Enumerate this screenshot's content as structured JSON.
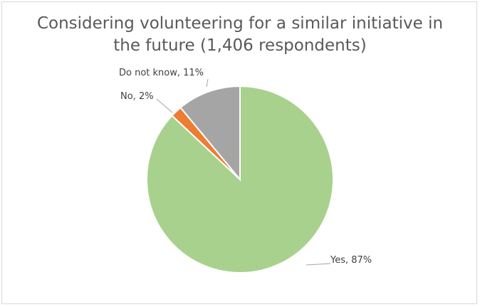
{
  "chart_data": {
    "type": "pie",
    "title": "Considering volunteering for a similar initiative in the future (1,406 respondents)",
    "categories": [
      "Yes",
      "No",
      "Do not know"
    ],
    "values": [
      87,
      2,
      11
    ],
    "unit": "%",
    "data_labels": [
      "Yes, 87%",
      "No, 2%",
      "Do not know, 11%"
    ],
    "colors": [
      "#a9d18e",
      "#ed7d31",
      "#a5a5a5"
    ],
    "legend": "none",
    "start_angle_deg": 0,
    "direction": "clockwise"
  }
}
